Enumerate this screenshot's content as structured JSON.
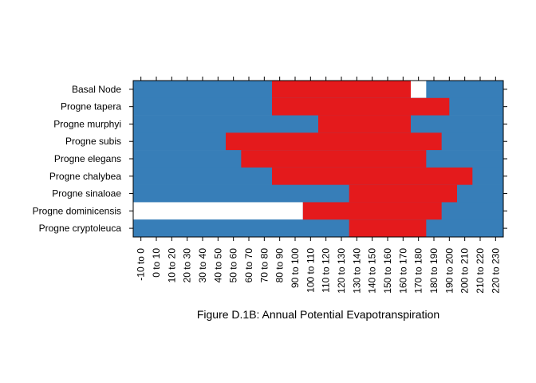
{
  "caption": "Figure D.1B: Annual Potential Evapotranspiration",
  "chart_data": {
    "type": "heatmap",
    "title": "",
    "xlabel": "",
    "ylabel": "",
    "colors": {
      "blue": "#377EB8",
      "red": "#E41A1C",
      "empty": "#FFFFFF"
    },
    "legend": "none",
    "categories": [
      "-10 to 0",
      "0 to 10",
      "10 to 20",
      "20 to 30",
      "30 to 40",
      "40 to 50",
      "50 to 60",
      "60 to 70",
      "70 to 80",
      "80 to 90",
      "90 to 100",
      "100 to 110",
      "110 to 120",
      "120 to 130",
      "130 to 140",
      "140 to 150",
      "150 to 160",
      "160 to 170",
      "170 to 180",
      "180 to 190",
      "190 to 200",
      "200 to 210",
      "210 to 220",
      "220 to 230"
    ],
    "rows": [
      {
        "label": "Basal Node",
        "white_range": [
          18,
          19
        ],
        "red_range": [
          9,
          18
        ]
      },
      {
        "label": "Progne tapera",
        "white_range": null,
        "red_range": [
          9,
          20.5
        ]
      },
      {
        "label": "Progne murphyi",
        "white_range": null,
        "red_range": [
          12,
          18
        ]
      },
      {
        "label": "Progne subis",
        "white_range": null,
        "red_range": [
          6,
          20
        ]
      },
      {
        "label": "Progne elegans",
        "white_range": null,
        "red_range": [
          7,
          19
        ]
      },
      {
        "label": "Progne chalybea",
        "white_range": null,
        "red_range": [
          9,
          22
        ]
      },
      {
        "label": "Progne sinaloae",
        "white_range": null,
        "red_range": [
          14,
          21
        ]
      },
      {
        "label": "Progne dominicensis",
        "white_range": [
          0,
          11
        ],
        "red_range": [
          11,
          20
        ]
      },
      {
        "label": "Progne cryptoleuca",
        "white_range": null,
        "red_range": [
          14,
          19
        ]
      }
    ]
  }
}
